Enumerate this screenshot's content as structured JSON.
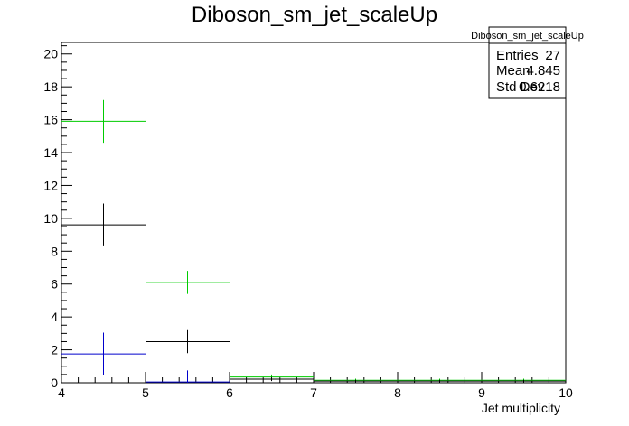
{
  "chart_data": {
    "type": "scatter",
    "title": "Diboson_sm_jet_scaleUp",
    "xlabel": "Jet multiplicity",
    "ylabel": "",
    "xlim": [
      4,
      10
    ],
    "ylim": [
      0,
      20.7
    ],
    "xticks": [
      "4",
      "5",
      "6",
      "7",
      "8",
      "9",
      "10"
    ],
    "yticks": [
      "0",
      "2",
      "4",
      "6",
      "8",
      "10",
      "12",
      "14",
      "16",
      "18",
      "20"
    ],
    "grid": false,
    "series": [
      {
        "color": "#00cc00",
        "points": [
          {
            "x0": 4,
            "x1": 5,
            "y": 15.9,
            "err": 1.3
          },
          {
            "x0": 5,
            "x1": 6,
            "y": 6.1,
            "err": 0.7
          },
          {
            "x0": 6,
            "x1": 7,
            "y": 0.35,
            "err": 0.15
          },
          {
            "x0": 7,
            "x1": 8,
            "y": 0.15,
            "err": 0.1
          },
          {
            "x0": 8,
            "x1": 9,
            "y": 0.15,
            "err": 0.1
          },
          {
            "x0": 9,
            "x1": 10,
            "y": 0.15,
            "err": 0.1
          }
        ]
      },
      {
        "color": "#000000",
        "points": [
          {
            "x0": 4,
            "x1": 5,
            "y": 9.6,
            "err": 1.3
          },
          {
            "x0": 5,
            "x1": 6,
            "y": 2.5,
            "err": 0.7
          },
          {
            "x0": 6,
            "x1": 7,
            "y": 0.22,
            "err": 0.12
          },
          {
            "x0": 7,
            "x1": 8,
            "y": 0.1,
            "err": 0.08
          },
          {
            "x0": 8,
            "x1": 9,
            "y": 0.1,
            "err": 0.08
          },
          {
            "x0": 9,
            "x1": 10,
            "y": 0.1,
            "err": 0.08
          }
        ]
      },
      {
        "color": "#0000cc",
        "points": [
          {
            "x0": 4,
            "x1": 5,
            "y": 1.75,
            "err": 1.3
          },
          {
            "x0": 5,
            "x1": 6,
            "y": 0.05,
            "err": 0.7
          }
        ]
      }
    ],
    "stats": {
      "title": "Diboson_sm_jet_scaleUp",
      "rows": [
        {
          "label": "Entries",
          "value": "27"
        },
        {
          "label": "Mean",
          "value": "4.845"
        },
        {
          "label": "Std Dev",
          "value": "0.6218"
        }
      ]
    },
    "legend_position": "top-right"
  }
}
